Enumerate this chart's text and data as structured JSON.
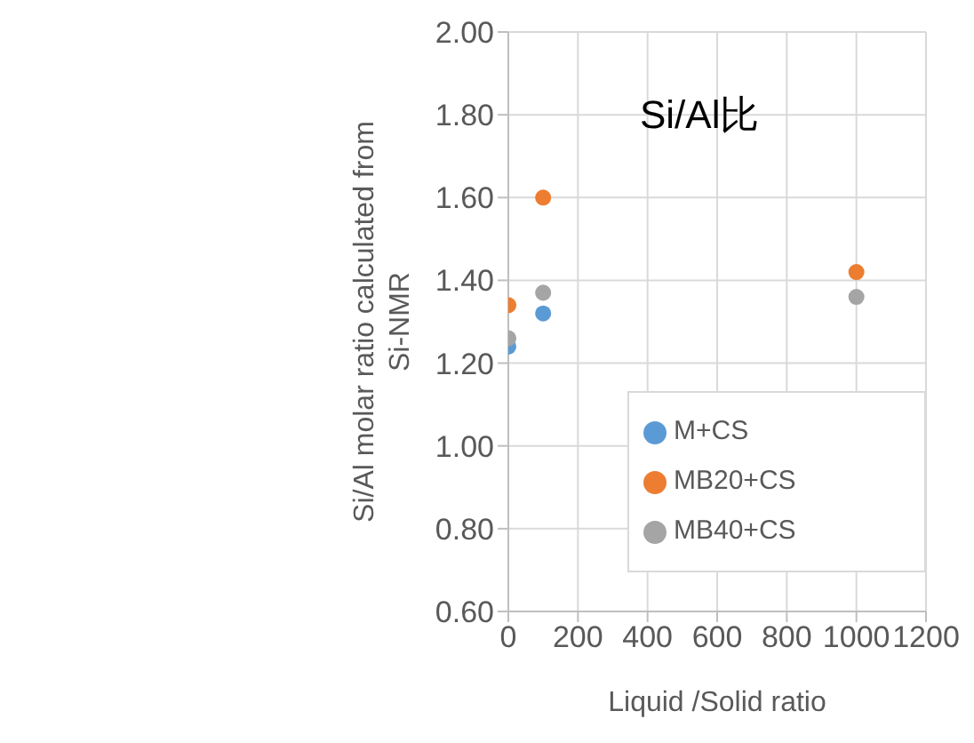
{
  "chart_data": {
    "type": "scatter",
    "xlabel": "Liquid /Solid ratio",
    "ylabel": "Si/Al molar ratio calculated from Si-NMR",
    "annotations": [
      "Si/Al比"
    ],
    "x": [
      0,
      100,
      1000
    ],
    "series": [
      {
        "name": "M+CS",
        "color": "#5b9bd5",
        "values": [
          1.24,
          1.32,
          null
        ]
      },
      {
        "name": "MB20+CS",
        "color": "#ed7d31",
        "values": [
          1.34,
          1.6,
          1.42
        ]
      },
      {
        "name": "MB40+CS",
        "color": "#a5a5a5",
        "values": [
          1.26,
          1.37,
          1.36
        ]
      }
    ],
    "xlim": [
      0,
      1200
    ],
    "xticks": [
      0,
      200,
      400,
      600,
      800,
      1000,
      1200
    ],
    "ylim": [
      0.6,
      2
    ],
    "yticks": [
      {
        "value": 0.6,
        "label": "0.60"
      },
      {
        "value": 0.8,
        "label": "0.80"
      },
      {
        "value": 1,
        "label": "1.00"
      },
      {
        "value": 1.2,
        "label": "1.20"
      },
      {
        "value": 1.4,
        "label": "1.40"
      },
      {
        "value": 1.6,
        "label": "1.60"
      },
      {
        "value": 1.8,
        "label": "1.80"
      },
      {
        "value": 2,
        "label": "2.00"
      }
    ],
    "grid": true,
    "legend": "bottom right",
    "marker": "circle"
  }
}
